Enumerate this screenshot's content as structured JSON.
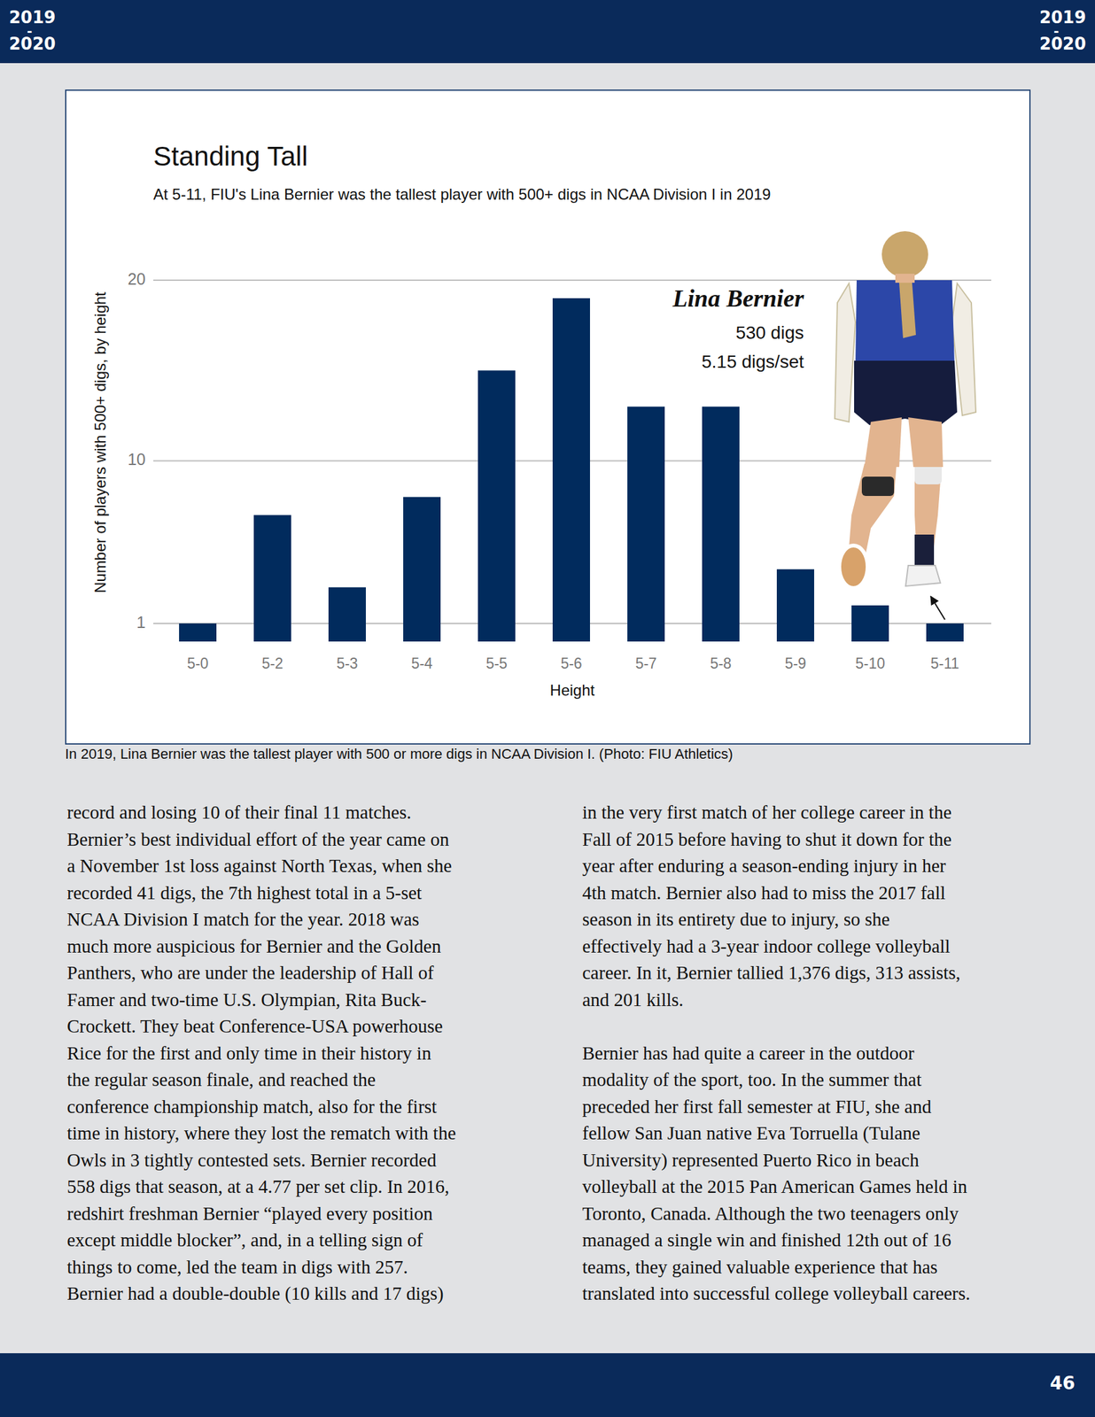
{
  "header": {
    "season_lines": [
      "2019",
      "-",
      "2020"
    ]
  },
  "chart_data": {
    "type": "bar",
    "title": "Standing Tall",
    "subtitle": "At 5-11, FIU's Lina Bernier was the tallest player with 500+ digs in NCAA Division I in 2019",
    "x_label": "Height",
    "y_label": "Number of players with 500+ digs, by height",
    "categories": [
      "5-0",
      "5-2",
      "5-3",
      "5-4",
      "5-5",
      "5-6",
      "5-7",
      "5-8",
      "5-9",
      "5-10",
      "5-11"
    ],
    "values": [
      1,
      7,
      3,
      8,
      15,
      19,
      13,
      13,
      4,
      2,
      1
    ],
    "color": "#012b5d",
    "ylim": [
      0,
      20
    ],
    "yticks": [
      1,
      10,
      20
    ],
    "grid": true,
    "annotations": [
      "Lina Bernier",
      "530 digs",
      "5.15 digs/set"
    ]
  },
  "caption": "In 2019, Lina Bernier was the tallest player with 500 or more digs in NCAA Division I. (Photo: FIU Athletics)",
  "body": {
    "left_column": [
      "record and losing 10 of their final 11 matches.",
      "Bernier’s best individual effort of the year came on",
      "a November 1st loss against North Texas, when she",
      "recorded 41 digs, the 7th highest total in a 5-set",
      "NCAA Division I match for the year. 2018 was",
      "much more auspicious for Bernier and the Golden",
      "Panthers, who are under the leadership of Hall of",
      "Famer and two-time U.S. Olympian, Rita Buck-",
      "Crockett. They beat Conference-USA powerhouse",
      "Rice for the first and only time in their history in",
      "the regular season finale, and reached the",
      "conference championship match, also for the first",
      "time in history, where they lost the rematch with the",
      "Owls in 3 tightly contested sets. Bernier recorded",
      "558 digs that season, at a 4.77 per set clip. In 2016,",
      "redshirt freshman Bernier “played every position",
      "except middle blocker”, and, in a telling sign of",
      "things to come, led the team in digs with 257.",
      "Bernier had a double-double (10 kills and 17 digs)"
    ],
    "right_column": [
      [
        "in the very first match of her college career in the",
        "Fall of 2015 before having to shut it down for the",
        "year after enduring a season-ending injury in her",
        "4th match. Bernier also had to miss the 2017 fall",
        "season in its entirety due to injury, so she",
        "effectively had a 3-year indoor college volleyball",
        "career. In it, Bernier tallied 1,376 digs, 313 assists,",
        "and 201 kills."
      ],
      [
        "Bernier has had quite a career in the outdoor",
        "modality of the sport, too. In the summer that",
        "preceded her first fall semester at FIU, she and",
        "fellow San Juan native Eva Torruella (Tulane",
        "University) represented Puerto Rico in beach",
        "volleyball at the 2015 Pan American Games held in",
        "Toronto, Canada. Although the two teenagers only",
        "managed a single win and finished 12th out of 16",
        "teams, they gained valuable experience that has",
        "translated into successful college volleyball careers."
      ]
    ]
  },
  "footer": {
    "page": 46
  }
}
